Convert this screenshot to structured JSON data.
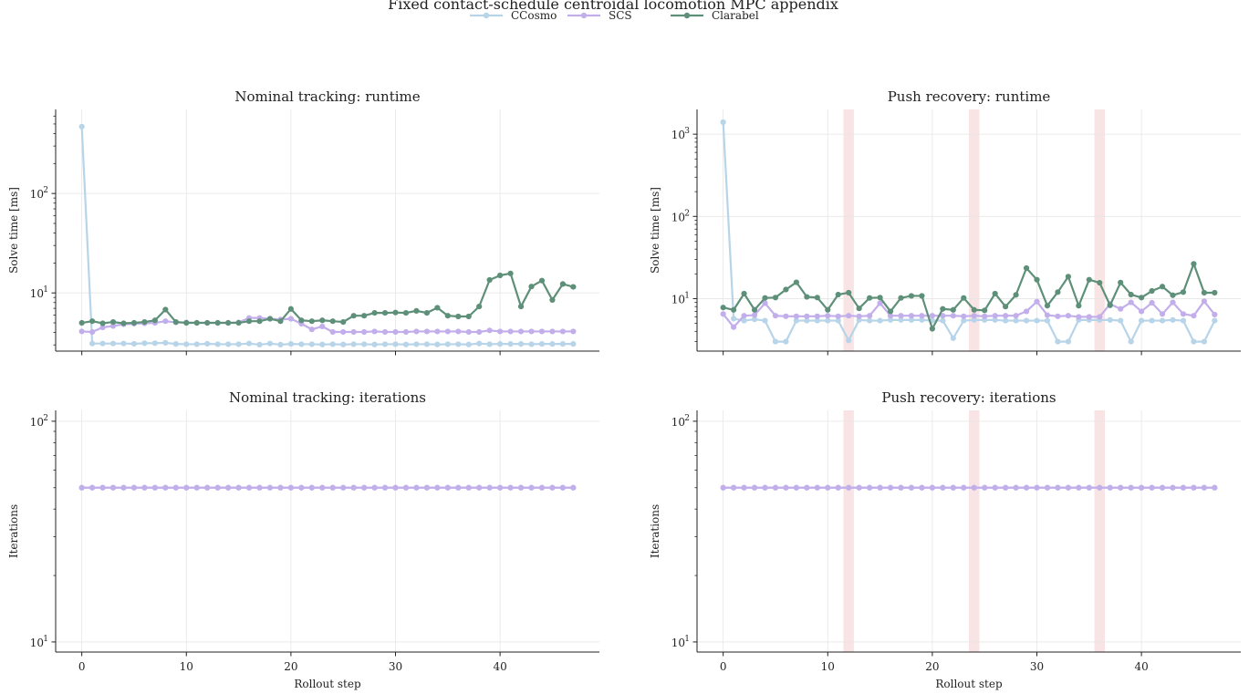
{
  "figure": {
    "suptitle": "Fixed contact-schedule centroidal locomotion MPC appendix",
    "legend": [
      {
        "label": "CCosmo",
        "color": "#b8d4e8"
      },
      {
        "label": "SCS",
        "color": "#c2aeea"
      },
      {
        "label": "Clarabel",
        "color": "#5e9079"
      }
    ]
  },
  "chart_data": [
    {
      "type": "line",
      "title": "Nominal tracking: runtime",
      "xlabel": "",
      "ylabel": "Solve time [ms]",
      "yscale": "log",
      "ylim": [
        2.6,
        700
      ],
      "xlim": [
        -2.5,
        49.5
      ],
      "xticks": [
        0,
        10,
        20,
        30,
        40
      ],
      "yticks": [
        {
          "v": 10,
          "label": "10¹"
        },
        {
          "v": 100,
          "label": "10²"
        }
      ],
      "grid": true,
      "series": [
        {
          "name": "CCosmo",
          "color": "#b8d4e8",
          "x": [
            0,
            1,
            2,
            3,
            4,
            5,
            6,
            7,
            8,
            9,
            10,
            11,
            12,
            13,
            14,
            15,
            16,
            17,
            18,
            19,
            20,
            21,
            22,
            23,
            24,
            25,
            26,
            27,
            28,
            29,
            30,
            31,
            32,
            33,
            34,
            35,
            36,
            37,
            38,
            39,
            40,
            41,
            42,
            43,
            44,
            45,
            46,
            47
          ],
          "y": [
            470,
            3.1,
            3.1,
            3.1,
            3.1,
            3.08,
            3.12,
            3.12,
            3.15,
            3.07,
            3.05,
            3.05,
            3.08,
            3.05,
            3.05,
            3.05,
            3.1,
            3.02,
            3.1,
            3.02,
            3.07,
            3.05,
            3.05,
            3.03,
            3.05,
            3.03,
            3.05,
            3.05,
            3.03,
            3.05,
            3.05,
            3.03,
            3.05,
            3.05,
            3.03,
            3.05,
            3.05,
            3.03,
            3.1,
            3.05,
            3.07,
            3.07,
            3.07,
            3.05,
            3.07,
            3.07,
            3.07,
            3.07
          ]
        },
        {
          "name": "SCS",
          "color": "#c2aeea",
          "x": [
            0,
            1,
            2,
            3,
            4,
            5,
            6,
            7,
            8,
            9,
            10,
            11,
            12,
            13,
            14,
            15,
            16,
            17,
            18,
            19,
            20,
            21,
            22,
            23,
            24,
            25,
            26,
            27,
            28,
            29,
            30,
            31,
            32,
            33,
            34,
            35,
            36,
            37,
            38,
            39,
            40,
            41,
            42,
            43,
            44,
            45,
            46,
            47
          ],
          "y": [
            4.1,
            4.05,
            4.5,
            4.65,
            4.85,
            4.9,
            4.95,
            5.0,
            5.2,
            5.05,
            5.05,
            5.0,
            5.0,
            5.0,
            5.0,
            5.05,
            5.6,
            5.6,
            5.5,
            5.4,
            5.5,
            4.9,
            4.3,
            4.6,
            4.05,
            4.05,
            4.05,
            4.05,
            4.1,
            4.05,
            4.05,
            4.05,
            4.1,
            4.1,
            4.1,
            4.1,
            4.1,
            4.05,
            4.05,
            4.2,
            4.1,
            4.1,
            4.1,
            4.1,
            4.1,
            4.1,
            4.1,
            4.1
          ]
        },
        {
          "name": "Clarabel",
          "color": "#5e9079",
          "x": [
            0,
            1,
            2,
            3,
            4,
            5,
            6,
            7,
            8,
            9,
            10,
            11,
            12,
            13,
            14,
            15,
            16,
            17,
            18,
            19,
            20,
            21,
            22,
            23,
            24,
            25,
            26,
            27,
            28,
            29,
            30,
            31,
            32,
            33,
            34,
            35,
            36,
            37,
            38,
            39,
            40,
            41,
            42,
            43,
            44,
            45,
            46,
            47
          ],
          "y": [
            5.0,
            5.2,
            4.95,
            5.1,
            4.95,
            5.0,
            5.1,
            5.3,
            6.8,
            5.1,
            5.0,
            5.0,
            5.0,
            5.0,
            5.0,
            5.0,
            5.2,
            5.2,
            5.5,
            5.2,
            6.9,
            5.3,
            5.2,
            5.3,
            5.2,
            5.1,
            5.9,
            5.9,
            6.3,
            6.3,
            6.35,
            6.3,
            6.6,
            6.3,
            7.1,
            5.9,
            5.8,
            5.8,
            7.3,
            13.5,
            15.0,
            15.7,
            7.3,
            11.6,
            13.3,
            8.5,
            12.3,
            11.5
          ]
        }
      ]
    },
    {
      "type": "line",
      "title": "Push recovery: runtime",
      "xlabel": "",
      "ylabel": "Solve time [ms]",
      "yscale": "log",
      "ylim": [
        2.3,
        2000
      ],
      "xlim": [
        -2.5,
        49.5
      ],
      "xticks": [
        0,
        10,
        20,
        30,
        40
      ],
      "yticks": [
        {
          "v": 10,
          "label": "10¹"
        },
        {
          "v": 100,
          "label": "10²"
        },
        {
          "v": 1000,
          "label": "10³"
        }
      ],
      "grid": true,
      "shaded_steps": [
        12,
        24,
        36
      ],
      "series": [
        {
          "name": "CCosmo",
          "color": "#b8d4e8",
          "x": [
            0,
            1,
            2,
            3,
            4,
            5,
            6,
            7,
            8,
            9,
            10,
            11,
            12,
            13,
            14,
            15,
            16,
            17,
            18,
            19,
            20,
            21,
            22,
            23,
            24,
            25,
            26,
            27,
            28,
            29,
            30,
            31,
            32,
            33,
            34,
            35,
            36,
            37,
            38,
            39,
            40,
            41,
            42,
            43,
            44,
            45,
            46,
            47
          ],
          "y": [
            1400,
            5.7,
            5.4,
            5.6,
            5.4,
            3.0,
            3.0,
            5.4,
            5.4,
            5.4,
            5.4,
            5.4,
            3.1,
            5.5,
            5.4,
            5.4,
            5.5,
            5.5,
            5.5,
            5.5,
            5.4,
            5.4,
            3.3,
            5.4,
            5.5,
            5.5,
            5.5,
            5.4,
            5.4,
            5.4,
            5.4,
            5.4,
            3.0,
            3.0,
            5.5,
            5.5,
            5.5,
            5.5,
            5.4,
            3.0,
            5.4,
            5.4,
            5.4,
            5.5,
            5.4,
            3.0,
            3.0,
            5.4
          ]
        },
        {
          "name": "SCS",
          "color": "#c2aeea",
          "x": [
            0,
            1,
            2,
            3,
            4,
            5,
            6,
            7,
            8,
            9,
            10,
            11,
            12,
            13,
            14,
            15,
            16,
            17,
            18,
            19,
            20,
            21,
            22,
            23,
            24,
            25,
            26,
            27,
            28,
            29,
            30,
            31,
            32,
            33,
            34,
            35,
            36,
            37,
            38,
            39,
            40,
            41,
            42,
            43,
            44,
            45,
            46,
            47
          ],
          "y": [
            6.5,
            4.5,
            6.2,
            6.3,
            8.8,
            6.2,
            6.1,
            6.1,
            6.1,
            6.1,
            6.2,
            6.1,
            6.2,
            6.1,
            6.2,
            8.8,
            6.2,
            6.2,
            6.2,
            6.2,
            6.2,
            6.2,
            6.2,
            6.1,
            6.2,
            6.1,
            6.2,
            6.2,
            6.2,
            7.0,
            9.2,
            6.3,
            6.1,
            6.2,
            6.0,
            6.0,
            6.0,
            8.6,
            7.5,
            9.0,
            7.0,
            8.9,
            6.5,
            9.0,
            6.5,
            6.2,
            9.3,
            6.4
          ]
        },
        {
          "name": "Clarabel",
          "color": "#5e9079",
          "x": [
            0,
            1,
            2,
            3,
            4,
            5,
            6,
            7,
            8,
            9,
            10,
            11,
            12,
            13,
            14,
            15,
            16,
            17,
            18,
            19,
            20,
            21,
            22,
            23,
            24,
            25,
            26,
            27,
            28,
            29,
            30,
            31,
            32,
            33,
            34,
            35,
            36,
            37,
            38,
            39,
            40,
            41,
            42,
            43,
            44,
            45,
            46,
            47
          ],
          "y": [
            7.8,
            7.3,
            11.5,
            7.3,
            10.2,
            10.3,
            12.9,
            15.8,
            10.5,
            10.3,
            7.3,
            11.2,
            11.8,
            7.6,
            10.2,
            10.3,
            7.0,
            10.2,
            10.8,
            10.8,
            4.3,
            7.5,
            7.3,
            10.2,
            7.3,
            7.2,
            11.5,
            8.0,
            11.1,
            23.5,
            17.0,
            8.2,
            12.0,
            18.5,
            8.2,
            17.0,
            15.6,
            8.3,
            15.7,
            11.2,
            10.3,
            12.4,
            14.0,
            11.0,
            12.0,
            26.5,
            11.8,
            11.8
          ]
        }
      ]
    },
    {
      "type": "line",
      "title": "Nominal tracking: iterations",
      "xlabel": "Rollout step",
      "ylabel": "Iterations",
      "yscale": "log",
      "ylim": [
        9.0,
        112
      ],
      "xlim": [
        -2.5,
        49.5
      ],
      "xticks": [
        0,
        10,
        20,
        30,
        40
      ],
      "yticks": [
        {
          "v": 10,
          "label": "10¹"
        },
        {
          "v": 100,
          "label": "10²"
        }
      ],
      "grid": true,
      "series": [
        {
          "name": "CCosmo",
          "color": "#b8d4e8",
          "x": [
            0,
            1,
            2,
            3,
            4,
            5,
            6,
            7,
            8,
            9,
            10,
            11,
            12,
            13,
            14,
            15,
            16,
            17,
            18,
            19,
            20,
            21,
            22,
            23,
            24,
            25,
            26,
            27,
            28,
            29,
            30,
            31,
            32,
            33,
            34,
            35,
            36,
            37,
            38,
            39,
            40,
            41,
            42,
            43,
            44,
            45,
            46,
            47
          ],
          "y": [
            50,
            50,
            50,
            50,
            50,
            50,
            50,
            50,
            50,
            50,
            50,
            50,
            50,
            50,
            50,
            50,
            50,
            50,
            50,
            50,
            50,
            50,
            50,
            50,
            50,
            50,
            50,
            50,
            50,
            50,
            50,
            50,
            50,
            50,
            50,
            50,
            50,
            50,
            50,
            50,
            50,
            50,
            50,
            50,
            50,
            50,
            50,
            50
          ]
        },
        {
          "name": "SCS",
          "color": "#c2aeea",
          "x": [
            0,
            1,
            2,
            3,
            4,
            5,
            6,
            7,
            8,
            9,
            10,
            11,
            12,
            13,
            14,
            15,
            16,
            17,
            18,
            19,
            20,
            21,
            22,
            23,
            24,
            25,
            26,
            27,
            28,
            29,
            30,
            31,
            32,
            33,
            34,
            35,
            36,
            37,
            38,
            39,
            40,
            41,
            42,
            43,
            44,
            45,
            46,
            47
          ],
          "y": [
            50,
            50,
            50,
            50,
            50,
            50,
            50,
            50,
            50,
            50,
            50,
            50,
            50,
            50,
            50,
            50,
            50,
            50,
            50,
            50,
            50,
            50,
            50,
            50,
            50,
            50,
            50,
            50,
            50,
            50,
            50,
            50,
            50,
            50,
            50,
            50,
            50,
            50,
            50,
            50,
            50,
            50,
            50,
            50,
            50,
            50,
            50,
            50
          ]
        }
      ]
    },
    {
      "type": "line",
      "title": "Push recovery: iterations",
      "xlabel": "Rollout step",
      "ylabel": "Iterations",
      "yscale": "log",
      "ylim": [
        9.0,
        112
      ],
      "xlim": [
        -2.5,
        49.5
      ],
      "xticks": [
        0,
        10,
        20,
        30,
        40
      ],
      "yticks": [
        {
          "v": 10,
          "label": "10¹"
        },
        {
          "v": 100,
          "label": "10²"
        }
      ],
      "grid": true,
      "shaded_steps": [
        12,
        24,
        36
      ],
      "series": [
        {
          "name": "CCosmo",
          "color": "#b8d4e8",
          "x": [
            0,
            1,
            2,
            3,
            4,
            5,
            6,
            7,
            8,
            9,
            10,
            11,
            12,
            13,
            14,
            15,
            16,
            17,
            18,
            19,
            20,
            21,
            22,
            23,
            24,
            25,
            26,
            27,
            28,
            29,
            30,
            31,
            32,
            33,
            34,
            35,
            36,
            37,
            38,
            39,
            40,
            41,
            42,
            43,
            44,
            45,
            46,
            47
          ],
          "y": [
            50,
            50,
            50,
            50,
            50,
            50,
            50,
            50,
            50,
            50,
            50,
            50,
            50,
            50,
            50,
            50,
            50,
            50,
            50,
            50,
            50,
            50,
            50,
            50,
            50,
            50,
            50,
            50,
            50,
            50,
            50,
            50,
            50,
            50,
            50,
            50,
            50,
            50,
            50,
            50,
            50,
            50,
            50,
            50,
            50,
            50,
            50,
            50
          ]
        },
        {
          "name": "SCS",
          "color": "#c2aeea",
          "x": [
            0,
            1,
            2,
            3,
            4,
            5,
            6,
            7,
            8,
            9,
            10,
            11,
            12,
            13,
            14,
            15,
            16,
            17,
            18,
            19,
            20,
            21,
            22,
            23,
            24,
            25,
            26,
            27,
            28,
            29,
            30,
            31,
            32,
            33,
            34,
            35,
            36,
            37,
            38,
            39,
            40,
            41,
            42,
            43,
            44,
            45,
            46,
            47
          ],
          "y": [
            50,
            50,
            50,
            50,
            50,
            50,
            50,
            50,
            50,
            50,
            50,
            50,
            50,
            50,
            50,
            50,
            50,
            50,
            50,
            50,
            50,
            50,
            50,
            50,
            50,
            50,
            50,
            50,
            50,
            50,
            50,
            50,
            50,
            50,
            50,
            50,
            50,
            50,
            50,
            50,
            50,
            50,
            50,
            50,
            50,
            50,
            50,
            50
          ]
        }
      ]
    }
  ]
}
